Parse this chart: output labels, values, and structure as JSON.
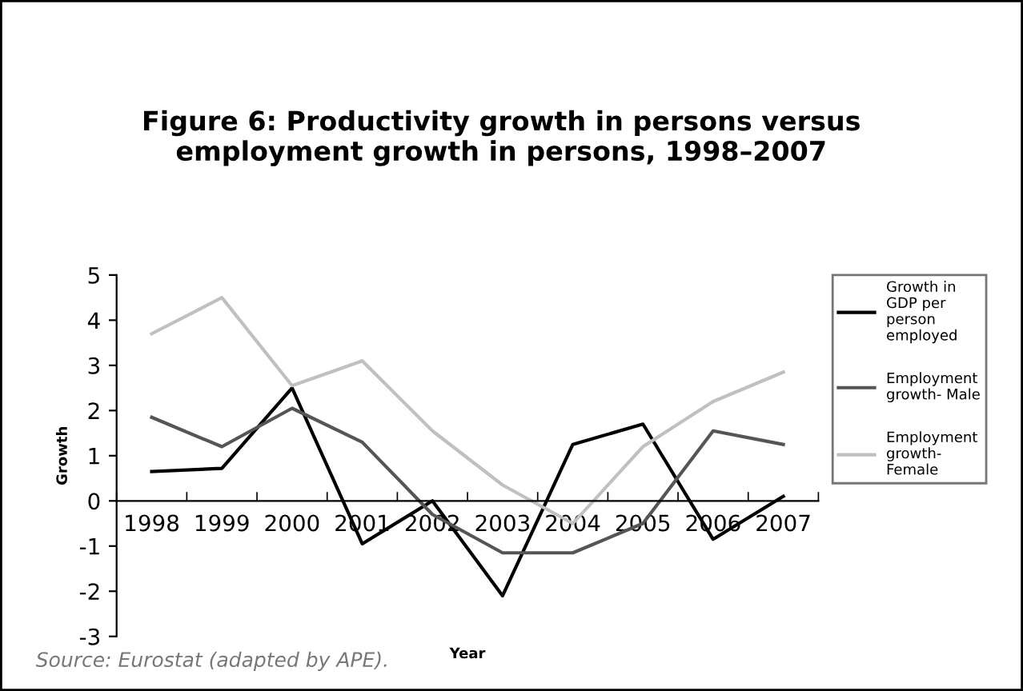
{
  "chart_data": {
    "type": "line",
    "title": "Figure 6: Productivity growth in persons versus\nemployment growth in persons, 1998–2007",
    "xlabel": "Year",
    "ylabel": "Growth",
    "categories": [
      "1998",
      "1999",
      "2000",
      "2001",
      "2002",
      "2003",
      "2004",
      "2005",
      "2006",
      "2007"
    ],
    "series": [
      {
        "name": "Growth in\nGDP per\nperson\nemployed",
        "color": "#000000",
        "values": [
          0.65,
          0.72,
          2.5,
          -0.95,
          0,
          -2.1,
          1.25,
          1.7,
          -0.85,
          0.1
        ]
      },
      {
        "name": "Employment\ngrowth- Male",
        "color": "#555555",
        "values": [
          1.85,
          1.2,
          2.05,
          1.3,
          -0.3,
          -1.15,
          -1.15,
          -0.5,
          1.55,
          1.25
        ]
      },
      {
        "name": "Employment\ngrowth-\nFemale",
        "color": "#c0c0c0",
        "values": [
          3.7,
          4.5,
          2.55,
          3.1,
          1.55,
          0.35,
          -0.5,
          1.2,
          2.2,
          2.85
        ]
      }
    ],
    "ylim": [
      -3,
      5
    ],
    "yticks": [
      -3,
      -2,
      -1,
      0,
      1,
      2,
      3,
      4,
      5
    ],
    "legend": "right",
    "grid": false,
    "marker": "none",
    "line_style": "solid",
    "annotations": [
      "Source: Eurostat (adapted by APE)."
    ]
  }
}
